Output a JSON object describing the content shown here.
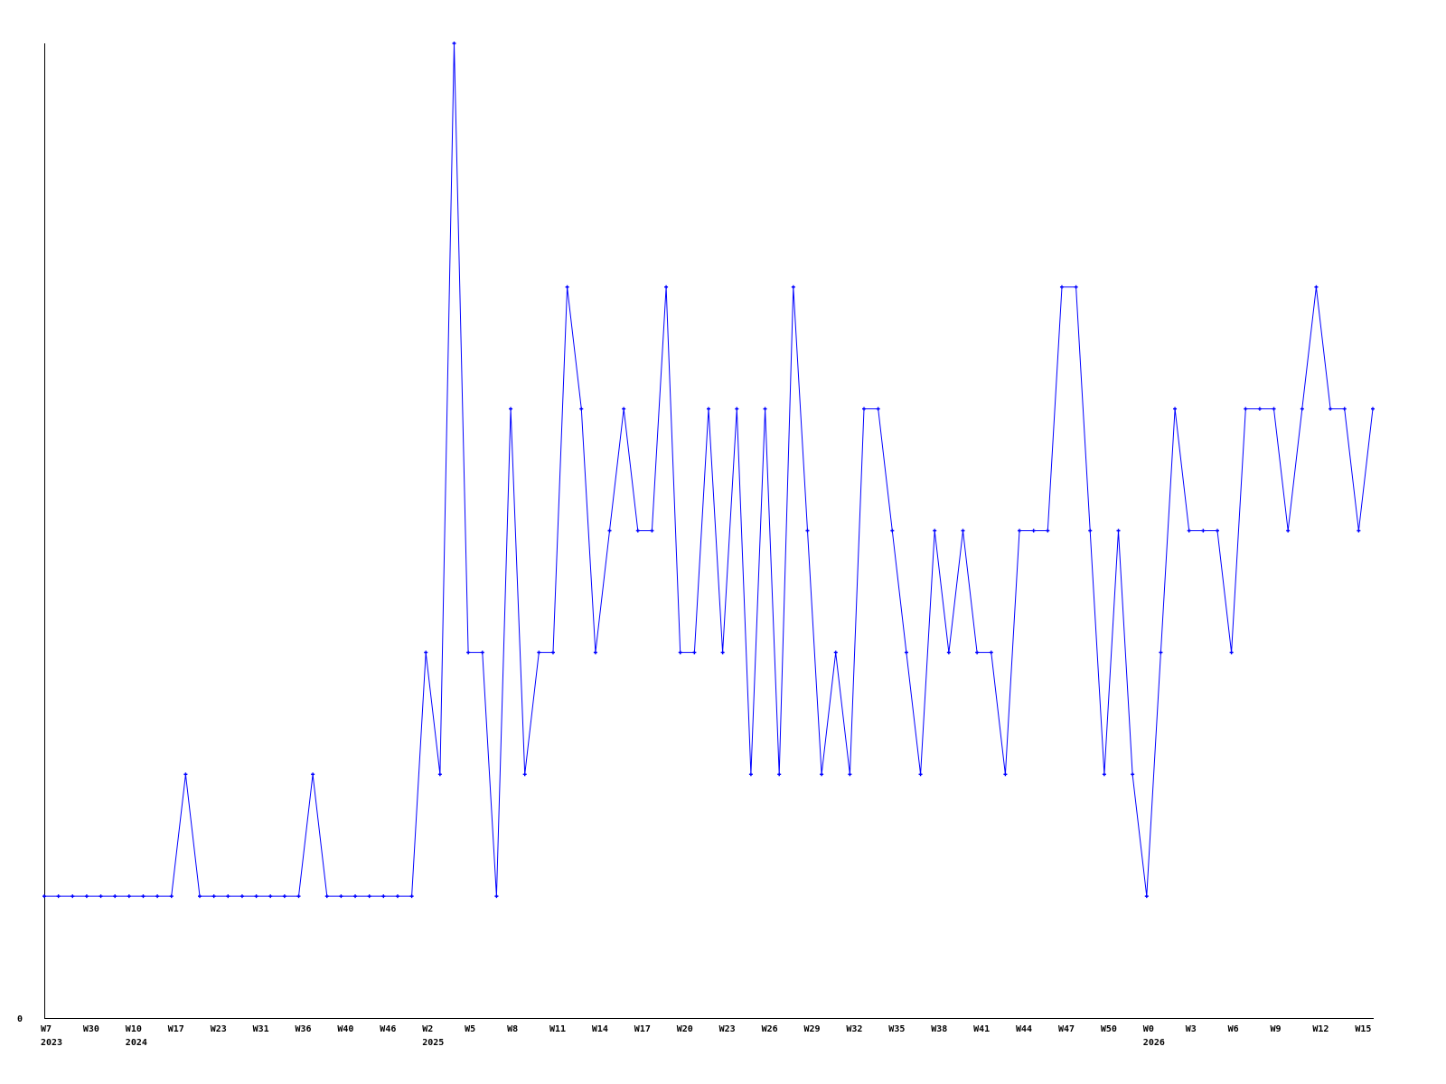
{
  "chart_data": {
    "type": "line",
    "title": "",
    "xlabel": "",
    "ylabel": "",
    "ylim": [
      0,
      8
    ],
    "y_tick_labels": [
      "0"
    ],
    "grid": false,
    "line_color": "#0000ff",
    "axis_color": "#000000",
    "x_tick_labels": [
      {
        "label": "W7",
        "year": "2023"
      },
      {
        "label": "W30",
        "year": ""
      },
      {
        "label": "W10",
        "year": "2024"
      },
      {
        "label": "W17",
        "year": ""
      },
      {
        "label": "W23",
        "year": ""
      },
      {
        "label": "W31",
        "year": ""
      },
      {
        "label": "W36",
        "year": ""
      },
      {
        "label": "W40",
        "year": ""
      },
      {
        "label": "W46",
        "year": ""
      },
      {
        "label": "W2",
        "year": "2025"
      },
      {
        "label": "W5",
        "year": ""
      },
      {
        "label": "W8",
        "year": ""
      },
      {
        "label": "W11",
        "year": ""
      },
      {
        "label": "W14",
        "year": ""
      },
      {
        "label": "W17",
        "year": ""
      },
      {
        "label": "W20",
        "year": ""
      },
      {
        "label": "W23",
        "year": ""
      },
      {
        "label": "W26",
        "year": ""
      },
      {
        "label": "W29",
        "year": ""
      },
      {
        "label": "W32",
        "year": ""
      },
      {
        "label": "W35",
        "year": ""
      },
      {
        "label": "W38",
        "year": ""
      },
      {
        "label": "W41",
        "year": ""
      },
      {
        "label": "W44",
        "year": ""
      },
      {
        "label": "W47",
        "year": ""
      },
      {
        "label": "W50",
        "year": ""
      },
      {
        "label": "W0",
        "year": "2026"
      },
      {
        "label": "W3",
        "year": ""
      },
      {
        "label": "W6",
        "year": ""
      },
      {
        "label": "W9",
        "year": ""
      },
      {
        "label": "W12",
        "year": ""
      },
      {
        "label": "W15",
        "year": ""
      }
    ],
    "values": [
      1,
      1,
      1,
      1,
      1,
      1,
      1,
      1,
      1,
      1,
      2,
      1,
      1,
      1,
      1,
      1,
      1,
      1,
      1,
      2,
      1,
      1,
      1,
      1,
      1,
      1,
      1,
      3,
      2,
      8,
      3,
      3,
      1,
      5,
      2,
      3,
      3,
      6,
      5,
      3,
      4,
      5,
      4,
      4,
      6,
      3,
      3,
      5,
      3,
      5,
      2,
      5,
      2,
      6,
      4,
      2,
      3,
      2,
      5,
      5,
      4,
      3,
      2,
      4,
      3,
      4,
      3,
      3,
      2,
      4,
      4,
      4,
      6,
      6,
      4,
      2,
      4,
      2,
      1,
      3,
      5,
      4,
      4,
      4,
      3,
      5,
      5,
      5,
      4,
      5,
      6,
      5,
      5,
      4,
      5
    ]
  }
}
